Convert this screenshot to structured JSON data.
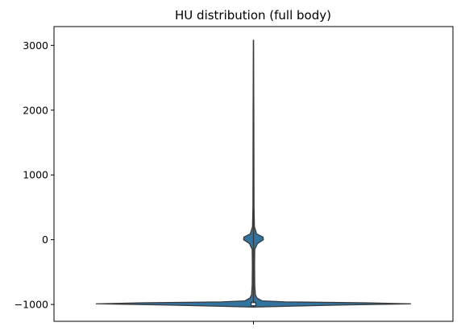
{
  "chart_data": {
    "type": "violin",
    "title": "HU distribution (full body)",
    "xlabel": "",
    "ylabel": "",
    "ylim": [
      -1260,
      3290
    ],
    "yticks": [
      -1000,
      0,
      1000,
      2000,
      3000
    ],
    "ytick_labels": [
      "−1000",
      "0",
      "1000",
      "2000",
      "3000"
    ],
    "grid": false,
    "legend": "none",
    "fill_color": "#3274a1",
    "line_color": "#3b3b3b",
    "density_profile": [
      {
        "hu": -1040,
        "half_width": 0.0
      },
      {
        "hu": -1025,
        "half_width": 0.25
      },
      {
        "hu": -1008,
        "half_width": 0.56
      },
      {
        "hu": -990,
        "half_width": 0.985
      },
      {
        "hu": -975,
        "half_width": 0.7
      },
      {
        "hu": -960,
        "half_width": 0.2
      },
      {
        "hu": -945,
        "half_width": 0.055
      },
      {
        "hu": -925,
        "half_width": 0.04
      },
      {
        "hu": -900,
        "half_width": 0.022
      },
      {
        "hu": -850,
        "half_width": 0.012
      },
      {
        "hu": -700,
        "half_width": 0.008
      },
      {
        "hu": -400,
        "half_width": 0.007
      },
      {
        "hu": -150,
        "half_width": 0.008
      },
      {
        "hu": -60,
        "half_width": 0.025
      },
      {
        "hu": 0,
        "half_width": 0.062
      },
      {
        "hu": 40,
        "half_width": 0.06
      },
      {
        "hu": 90,
        "half_width": 0.02
      },
      {
        "hu": 200,
        "half_width": 0.006
      },
      {
        "hu": 500,
        "half_width": 0.0035
      },
      {
        "hu": 1000,
        "half_width": 0.003
      },
      {
        "hu": 2000,
        "half_width": 0.0022
      },
      {
        "hu": 3080,
        "half_width": 0.0
      }
    ],
    "box": {
      "q1": -1020,
      "q3": -965,
      "median": -995,
      "whisker_low": -1040,
      "whisker_high": 3080
    }
  }
}
